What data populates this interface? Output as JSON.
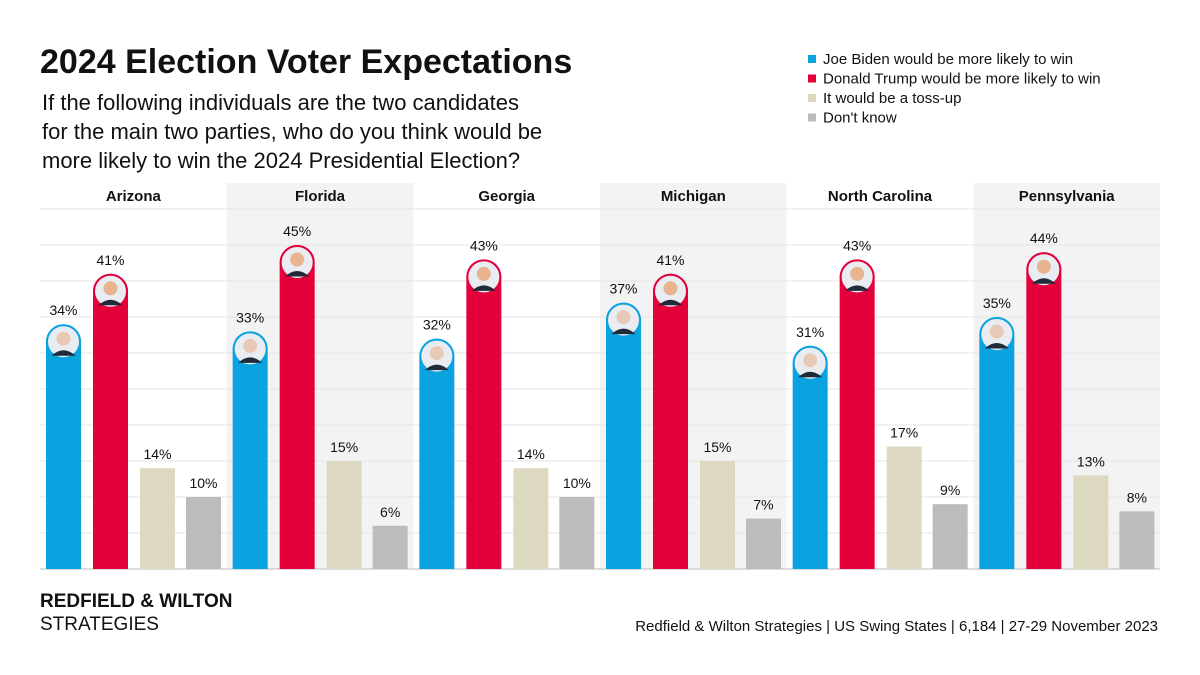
{
  "chart_data": {
    "type": "bar",
    "title": "2024 Election Voter Expectations",
    "subtitle": [
      "If the following individuals are the two candidates",
      "for the main two parties, who do you think would be",
      "more likely to win the 2024 Presidential Election?"
    ],
    "categories": [
      "Arizona",
      "Florida",
      "Georgia",
      "Michigan",
      "North Carolina",
      "Pennsylvania"
    ],
    "series": [
      {
        "name": "Joe Biden would be more likely to win",
        "color": "#0aa3e0",
        "values": [
          34,
          33,
          32,
          37,
          31,
          35
        ],
        "value_labels": [
          "34%",
          "33%",
          "32%",
          "37%",
          "31%",
          "35%"
        ]
      },
      {
        "name": "Donald Trump would be more likely to win",
        "color": "#e4003b",
        "values": [
          41,
          45,
          43,
          41,
          43,
          44
        ],
        "value_labels": [
          "41%",
          "45%",
          "43%",
          "41%",
          "43%",
          "44%"
        ]
      },
      {
        "name": "It would be a toss-up",
        "color": "#ddd8c0",
        "values": [
          14,
          15,
          14,
          15,
          17,
          13
        ],
        "value_labels": [
          "14%",
          "15%",
          "14%",
          "15%",
          "17%",
          "13%"
        ]
      },
      {
        "name": "Don't know",
        "color": "#bdbcbd",
        "values": [
          10,
          6,
          10,
          7,
          9,
          8
        ],
        "value_labels": [
          "10%",
          "6%",
          "10%",
          "7%",
          "9%",
          "8%"
        ]
      }
    ],
    "ylim": [
      0,
      50
    ],
    "yticks": [
      0,
      5,
      10,
      15,
      20,
      25,
      30,
      35,
      40,
      45,
      50
    ],
    "grid": true,
    "legend": "top-right",
    "source": "Redfield & Wilton Strategies | US Swing States | 6,184 | 27-29 November 2023"
  },
  "logo": [
    "REDFIELD & WILTON",
    "STRATEGIES"
  ]
}
